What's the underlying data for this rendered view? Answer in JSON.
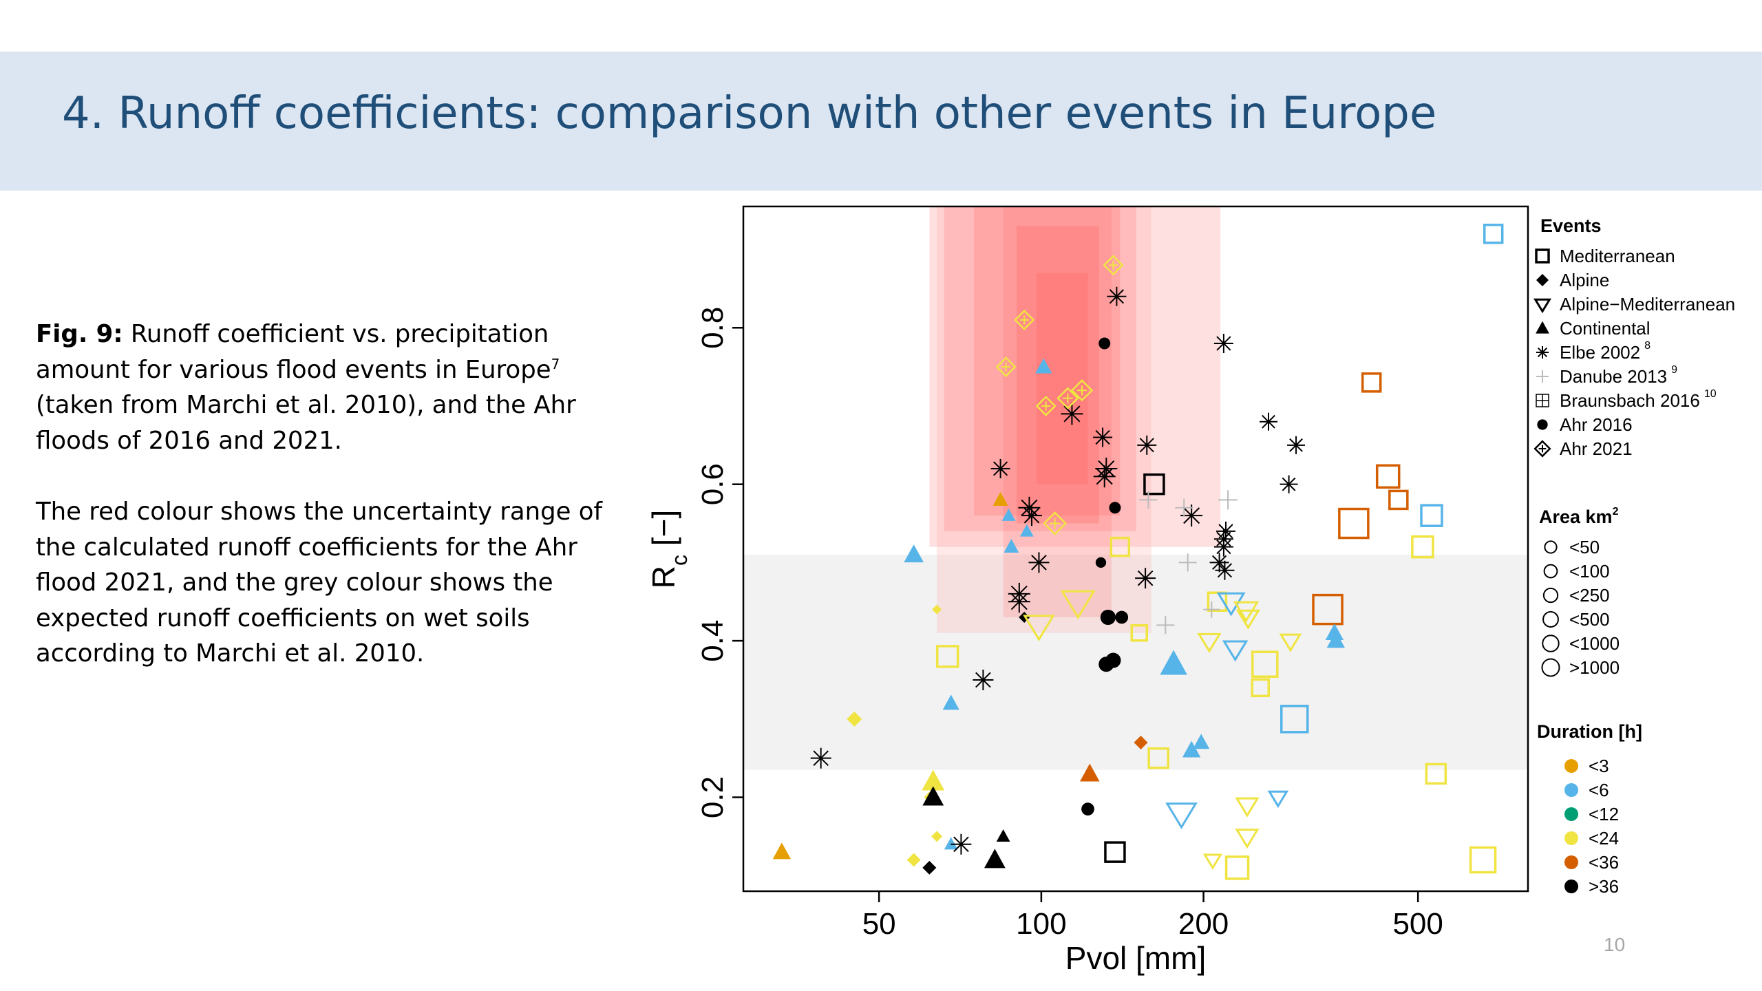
{
  "slide": {
    "title": "4. Runoff coefficients: comparison with other events in Europe",
    "page_number": "10"
  },
  "caption": {
    "fig_label": "Fig. 9:",
    "line1": " Runoff coefficient vs. precipitation amount for various flood events in Europe",
    "ref1": "7",
    "line2": " (taken from Marchi et al. 2010), and the Ahr floods of 2016 and 2021.",
    "para2": "The red colour shows the uncertainty range of the calculated runoff coefficients for the Ahr flood 2021, and the grey colour shows the expected runoff coefficients on wet soils according to Marchi et al. 2010."
  },
  "colors": {
    "title_band": "#dce6f2",
    "title_text": "#1f4e79",
    "duration_lt3": "#e69f00",
    "duration_lt6": "#56b4e9",
    "duration_lt12": "#009e73",
    "duration_lt24": "#f0e442",
    "duration_lt36": "#d55e00",
    "duration_gt36": "#000000",
    "uncertainty_band": "#ff9999",
    "wet_soil_band": "#e6e6e6"
  },
  "chart_data": {
    "type": "scatter",
    "xlabel": "Pvol [mm]",
    "ylabel": "Rc [−]",
    "ylabel_main": "R",
    "ylabel_sub": "c",
    "ylabel_unit": " [−]",
    "x_scale": "log",
    "x_ticks": [
      50,
      100,
      200,
      500
    ],
    "x_tick_labels": [
      "50",
      "100",
      "200",
      "500"
    ],
    "y_ticks": [
      0.2,
      0.4,
      0.6,
      0.8
    ],
    "y_tick_labels": [
      "0.2",
      "0.4",
      "0.6",
      "0.8"
    ],
    "xlim": [
      28,
      800
    ],
    "ylim": [
      0.08,
      0.955
    ],
    "grid": false,
    "legend_placement": "right",
    "shaded_regions": [
      {
        "name": "wet_soil_expected",
        "x": [
          28,
          800
        ],
        "y": [
          0.235,
          0.51
        ],
        "color": "#ececec",
        "opacity": 0.7
      },
      {
        "name": "uncertainty_outer",
        "x": [
          62,
          215
        ],
        "y": [
          0.52,
          0.955
        ],
        "color": "#ff9999",
        "opacity": 0.3
      },
      {
        "name": "uncertainty_a",
        "x": [
          64,
          160
        ],
        "y": [
          0.41,
          0.955
        ],
        "color": "#ff9999",
        "opacity": 0.22
      },
      {
        "name": "uncertainty_b",
        "x": [
          66,
          150
        ],
        "y": [
          0.54,
          0.955
        ],
        "color": "#ff8080",
        "opacity": 0.28
      },
      {
        "name": "uncertainty_c",
        "x": [
          75,
          140
        ],
        "y": [
          0.56,
          0.955
        ],
        "color": "#ff7070",
        "opacity": 0.28
      },
      {
        "name": "uncertainty_d",
        "x": [
          85,
          135
        ],
        "y": [
          0.43,
          0.955
        ],
        "color": "#ff7070",
        "opacity": 0.2
      },
      {
        "name": "uncertainty_e",
        "x": [
          90,
          128
        ],
        "y": [
          0.55,
          0.93
        ],
        "color": "#ff6060",
        "opacity": 0.28
      },
      {
        "name": "uncertainty_f",
        "x": [
          98,
          122
        ],
        "y": [
          0.6,
          0.87
        ],
        "color": "#ff5a5a",
        "opacity": 0.25
      }
    ],
    "legend_events": {
      "title": "Events",
      "items": [
        {
          "label": "Mediterranean",
          "sup": "",
          "shape": "square"
        },
        {
          "label": "Alpine",
          "sup": "",
          "shape": "diamond-filled"
        },
        {
          "label": "Alpine−Mediterranean",
          "sup": "",
          "shape": "triangle-down"
        },
        {
          "label": "Continental",
          "sup": "",
          "shape": "triangle-filled"
        },
        {
          "label": "Elbe 2002",
          "sup": "8",
          "shape": "asterisk"
        },
        {
          "label": "Danube 2013",
          "sup": "9",
          "shape": "plus"
        },
        {
          "label": "Braunsbach 2016",
          "sup": "10",
          "shape": "boxplus"
        },
        {
          "label": "Ahr 2016",
          "sup": "",
          "shape": "circle-filled"
        },
        {
          "label": "Ahr 2021",
          "sup": "",
          "shape": "diamond-plus"
        }
      ]
    },
    "legend_area": {
      "title": "Area km",
      "title_sup": "2",
      "items": [
        {
          "label": "<50",
          "size": 1
        },
        {
          "label": "<100",
          "size": 1.3
        },
        {
          "label": "<250",
          "size": 1.6
        },
        {
          "label": "<500",
          "size": 1.9
        },
        {
          "label": "<1000",
          "size": 2.2
        },
        {
          "label": ">1000",
          "size": 2.5
        }
      ]
    },
    "legend_duration": {
      "title": "Duration [h]",
      "items": [
        {
          "label": "<3",
          "color": "#e69f00"
        },
        {
          "label": "<6",
          "color": "#56b4e9"
        },
        {
          "label": "<12",
          "color": "#009e73"
        },
        {
          "label": "<24",
          "color": "#f0e442"
        },
        {
          "label": "<36",
          "color": "#d55e00"
        },
        {
          "label": ">36",
          "color": "#000000"
        }
      ]
    },
    "series": [
      {
        "name": "Mediterranean",
        "shape": "square",
        "points": [
          {
            "x": 690,
            "y": 0.92,
            "size": 1.3,
            "color": "#56b4e9"
          },
          {
            "x": 410,
            "y": 0.73,
            "size": 1.3,
            "color": "#d55e00"
          },
          {
            "x": 440,
            "y": 0.61,
            "size": 1.6,
            "color": "#d55e00"
          },
          {
            "x": 460,
            "y": 0.58,
            "size": 1.3,
            "color": "#d55e00"
          },
          {
            "x": 380,
            "y": 0.55,
            "size": 2.1,
            "color": "#d55e00"
          },
          {
            "x": 530,
            "y": 0.56,
            "size": 1.5,
            "color": "#56b4e9"
          },
          {
            "x": 510,
            "y": 0.52,
            "size": 1.5,
            "color": "#f0e442"
          },
          {
            "x": 340,
            "y": 0.44,
            "size": 2.1,
            "color": "#d55e00"
          },
          {
            "x": 295,
            "y": 0.3,
            "size": 1.9,
            "color": "#56b4e9"
          },
          {
            "x": 540,
            "y": 0.23,
            "size": 1.4,
            "color": "#f0e442"
          },
          {
            "x": 660,
            "y": 0.12,
            "size": 1.8,
            "color": "#f0e442"
          },
          {
            "x": 140,
            "y": 0.52,
            "size": 1.3,
            "color": "#f0e442"
          },
          {
            "x": 162,
            "y": 0.6,
            "size": 1.4,
            "color": "#000000"
          },
          {
            "x": 212,
            "y": 0.45,
            "size": 1.3,
            "color": "#f0e442"
          },
          {
            "x": 260,
            "y": 0.37,
            "size": 1.8,
            "color": "#f0e442"
          },
          {
            "x": 255,
            "y": 0.34,
            "size": 1.2,
            "color": "#f0e442"
          },
          {
            "x": 67,
            "y": 0.38,
            "size": 1.5,
            "color": "#f0e442"
          },
          {
            "x": 152,
            "y": 0.41,
            "size": 1.1,
            "color": "#f0e442"
          },
          {
            "x": 165,
            "y": 0.25,
            "size": 1.4,
            "color": "#f0e442"
          },
          {
            "x": 231,
            "y": 0.11,
            "size": 1.6,
            "color": "#f0e442"
          },
          {
            "x": 137,
            "y": 0.13,
            "size": 1.4,
            "color": "#000000"
          }
        ]
      },
      {
        "name": "Alpine",
        "shape": "diamond-filled",
        "points": [
          {
            "x": 64,
            "y": 0.44,
            "size": 0.7,
            "color": "#f0e442"
          },
          {
            "x": 45,
            "y": 0.3,
            "size": 1.1,
            "color": "#f0e442"
          },
          {
            "x": 62,
            "y": 0.2,
            "size": 0.8,
            "color": "#f0e442"
          },
          {
            "x": 64,
            "y": 0.15,
            "size": 0.8,
            "color": "#f0e442"
          },
          {
            "x": 58,
            "y": 0.12,
            "size": 1.0,
            "color": "#f0e442"
          },
          {
            "x": 62,
            "y": 0.11,
            "size": 1.0,
            "color": "#000000"
          },
          {
            "x": 153,
            "y": 0.27,
            "size": 1.0,
            "color": "#d55e00"
          },
          {
            "x": 93,
            "y": 0.43,
            "size": 0.8,
            "color": "#000000"
          }
        ]
      },
      {
        "name": "Alpine−Mediterranean",
        "shape": "triangle-down",
        "points": [
          {
            "x": 225,
            "y": 0.45,
            "size": 1.6,
            "color": "#56b4e9"
          },
          {
            "x": 229,
            "y": 0.39,
            "size": 1.4,
            "color": "#56b4e9"
          },
          {
            "x": 240,
            "y": 0.44,
            "size": 1.4,
            "color": "#f0e442"
          },
          {
            "x": 242,
            "y": 0.43,
            "size": 1.3,
            "color": "#f0e442"
          },
          {
            "x": 290,
            "y": 0.4,
            "size": 1.2,
            "color": "#f0e442"
          },
          {
            "x": 205,
            "y": 0.4,
            "size": 1.3,
            "color": "#f0e442"
          },
          {
            "x": 241,
            "y": 0.19,
            "size": 1.3,
            "color": "#f0e442"
          },
          {
            "x": 241,
            "y": 0.15,
            "size": 1.3,
            "color": "#f0e442"
          },
          {
            "x": 208,
            "y": 0.12,
            "size": 1.0,
            "color": "#f0e442"
          },
          {
            "x": 182,
            "y": 0.18,
            "size": 1.8,
            "color": "#56b4e9"
          },
          {
            "x": 275,
            "y": 0.2,
            "size": 1.1,
            "color": "#56b4e9"
          },
          {
            "x": 117,
            "y": 0.45,
            "size": 2.0,
            "color": "#f0e442"
          },
          {
            "x": 99,
            "y": 0.42,
            "size": 1.8,
            "color": "#f0e442"
          }
        ]
      },
      {
        "name": "Continental",
        "shape": "triangle-filled",
        "points": [
          {
            "x": 58,
            "y": 0.51,
            "size": 1.3,
            "color": "#56b4e9"
          },
          {
            "x": 87,
            "y": 0.56,
            "size": 0.9,
            "color": "#56b4e9"
          },
          {
            "x": 94,
            "y": 0.54,
            "size": 0.9,
            "color": "#56b4e9"
          },
          {
            "x": 88,
            "y": 0.52,
            "size": 1.0,
            "color": "#56b4e9"
          },
          {
            "x": 84,
            "y": 0.58,
            "size": 1.0,
            "color": "#e69f00"
          },
          {
            "x": 68,
            "y": 0.32,
            "size": 1.1,
            "color": "#56b4e9"
          },
          {
            "x": 63,
            "y": 0.22,
            "size": 1.5,
            "color": "#f0e442"
          },
          {
            "x": 63,
            "y": 0.2,
            "size": 1.4,
            "color": "#000000"
          },
          {
            "x": 33,
            "y": 0.13,
            "size": 1.2,
            "color": "#e69f00"
          },
          {
            "x": 68,
            "y": 0.14,
            "size": 0.9,
            "color": "#56b4e9"
          },
          {
            "x": 85,
            "y": 0.15,
            "size": 0.9,
            "color": "#000000"
          },
          {
            "x": 82,
            "y": 0.12,
            "size": 1.4,
            "color": "#000000"
          },
          {
            "x": 123,
            "y": 0.23,
            "size": 1.3,
            "color": "#d55e00"
          },
          {
            "x": 176,
            "y": 0.37,
            "size": 1.8,
            "color": "#56b4e9"
          },
          {
            "x": 190,
            "y": 0.26,
            "size": 1.2,
            "color": "#56b4e9"
          },
          {
            "x": 198,
            "y": 0.27,
            "size": 1.1,
            "color": "#56b4e9"
          },
          {
            "x": 350,
            "y": 0.41,
            "size": 1.2,
            "color": "#56b4e9"
          },
          {
            "x": 352,
            "y": 0.4,
            "size": 1.2,
            "color": "#56b4e9"
          },
          {
            "x": 101,
            "y": 0.75,
            "size": 1.1,
            "color": "#56b4e9"
          }
        ]
      },
      {
        "name": "Elbe 2002",
        "shape": "asterisk",
        "points": [
          {
            "x": 138,
            "y": 0.84,
            "size": 1.4
          },
          {
            "x": 218,
            "y": 0.78,
            "size": 1.4
          },
          {
            "x": 264,
            "y": 0.68,
            "size": 1.3
          },
          {
            "x": 297,
            "y": 0.65,
            "size": 1.3
          },
          {
            "x": 288,
            "y": 0.6,
            "size": 1.3
          },
          {
            "x": 114,
            "y": 0.69,
            "size": 1.6
          },
          {
            "x": 130,
            "y": 0.66,
            "size": 1.4
          },
          {
            "x": 157,
            "y": 0.65,
            "size": 1.4
          },
          {
            "x": 132,
            "y": 0.62,
            "size": 1.6
          },
          {
            "x": 131,
            "y": 0.61,
            "size": 1.6
          },
          {
            "x": 84,
            "y": 0.62,
            "size": 1.4
          },
          {
            "x": 95,
            "y": 0.57,
            "size": 1.6
          },
          {
            "x": 96,
            "y": 0.56,
            "size": 1.5
          },
          {
            "x": 190,
            "y": 0.56,
            "size": 1.6
          },
          {
            "x": 220,
            "y": 0.54,
            "size": 1.4
          },
          {
            "x": 218,
            "y": 0.53,
            "size": 1.4
          },
          {
            "x": 218,
            "y": 0.52,
            "size": 1.4
          },
          {
            "x": 214,
            "y": 0.5,
            "size": 1.4
          },
          {
            "x": 219,
            "y": 0.49,
            "size": 1.4
          },
          {
            "x": 99,
            "y": 0.5,
            "size": 1.5
          },
          {
            "x": 156,
            "y": 0.48,
            "size": 1.5
          },
          {
            "x": 91,
            "y": 0.46,
            "size": 1.6
          },
          {
            "x": 91,
            "y": 0.45,
            "size": 1.6
          },
          {
            "x": 78,
            "y": 0.35,
            "size": 1.5
          },
          {
            "x": 39,
            "y": 0.25,
            "size": 1.5
          },
          {
            "x": 71,
            "y": 0.14,
            "size": 1.5
          }
        ]
      },
      {
        "name": "Danube 2013",
        "shape": "plus",
        "points": [
          {
            "x": 158,
            "y": 0.58,
            "size": 1.3
          },
          {
            "x": 222,
            "y": 0.58,
            "size": 1.4
          },
          {
            "x": 184,
            "y": 0.57,
            "size": 1.3
          },
          {
            "x": 187,
            "y": 0.5,
            "size": 1.3
          },
          {
            "x": 170,
            "y": 0.42,
            "size": 1.3
          },
          {
            "x": 207,
            "y": 0.44,
            "size": 1.2
          }
        ]
      },
      {
        "name": "Ahr 2016",
        "shape": "circle-filled",
        "points": [
          {
            "x": 131,
            "y": 0.78,
            "size": 1.0
          },
          {
            "x": 137,
            "y": 0.57,
            "size": 1.0
          },
          {
            "x": 129,
            "y": 0.5,
            "size": 0.9
          },
          {
            "x": 133,
            "y": 0.43,
            "size": 1.3
          },
          {
            "x": 141,
            "y": 0.43,
            "size": 1.1
          },
          {
            "x": 132,
            "y": 0.37,
            "size": 1.3
          },
          {
            "x": 136,
            "y": 0.375,
            "size": 1.3
          },
          {
            "x": 122,
            "y": 0.185,
            "size": 1.1
          }
        ]
      },
      {
        "name": "Ahr 2021",
        "shape": "diamond-plus",
        "points": [
          {
            "x": 136,
            "y": 0.88,
            "size": 1.1,
            "color": "#f0e442"
          },
          {
            "x": 93,
            "y": 0.81,
            "size": 1.1,
            "color": "#f0e442"
          },
          {
            "x": 86,
            "y": 0.75,
            "size": 1.1,
            "color": "#f0e442"
          },
          {
            "x": 102,
            "y": 0.7,
            "size": 1.1,
            "color": "#f0e442"
          },
          {
            "x": 112,
            "y": 0.71,
            "size": 1.2,
            "color": "#f0e442"
          },
          {
            "x": 119,
            "y": 0.72,
            "size": 1.2,
            "color": "#f0e442"
          },
          {
            "x": 106,
            "y": 0.55,
            "size": 1.3,
            "color": "#f0e442"
          }
        ]
      }
    ]
  }
}
